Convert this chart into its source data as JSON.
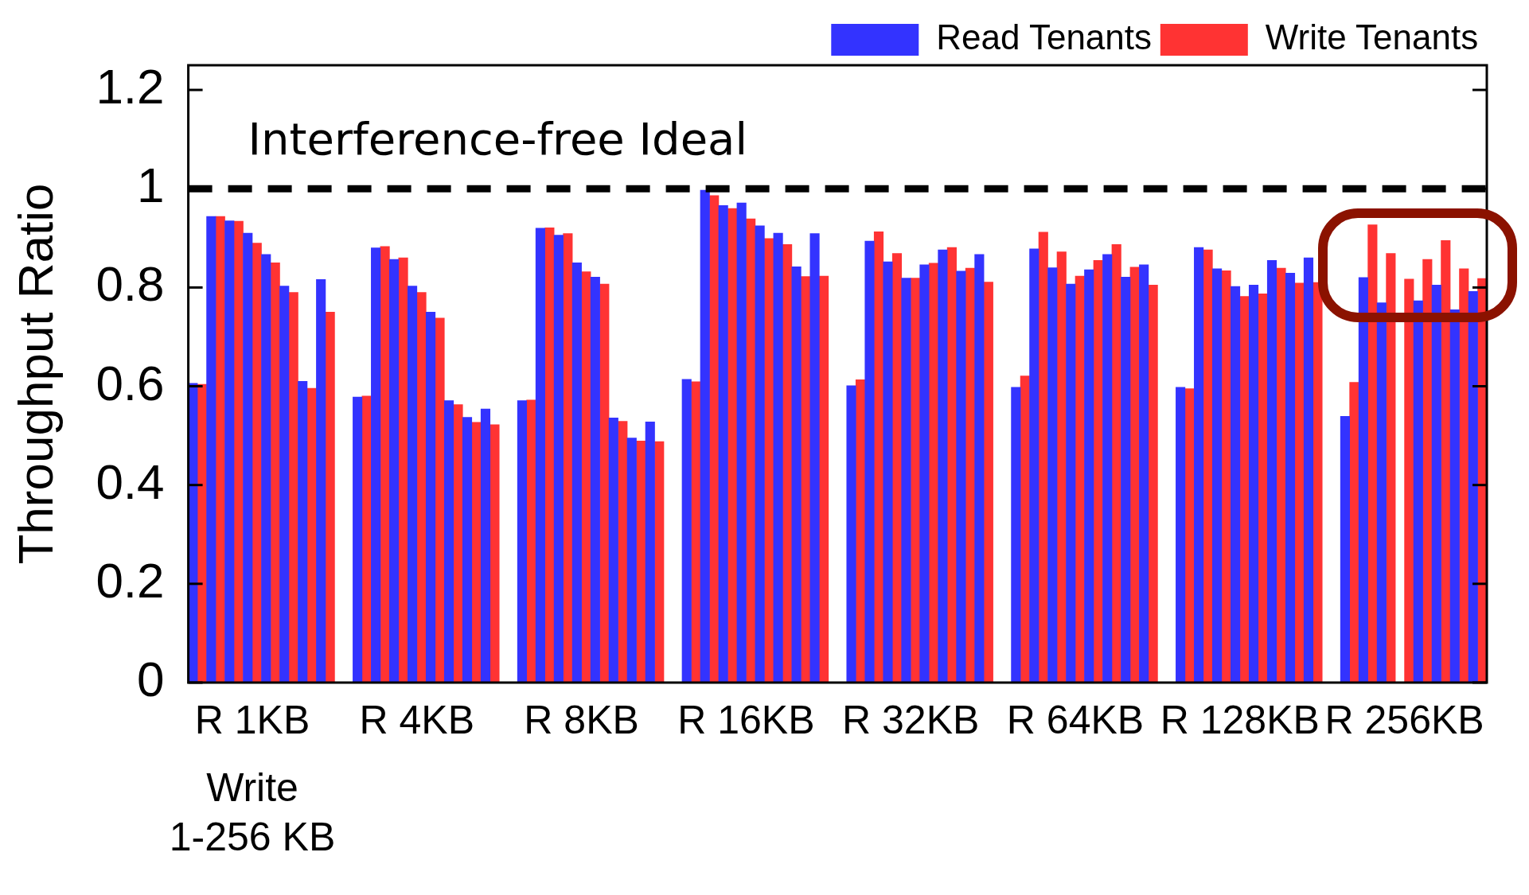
{
  "chart_data": {
    "type": "bar",
    "ylabel": "Throughput Ratio",
    "categories": [
      null,
      null,
      null,
      "R 1KB",
      null,
      null,
      null,
      null,
      null,
      null,
      null,
      null,
      "R 4KB",
      null,
      null,
      null,
      null,
      null,
      null,
      null,
      null,
      "R 8KB",
      null,
      null,
      null,
      null,
      null,
      null,
      null,
      null,
      "R 16KB",
      null,
      null,
      null,
      null,
      null,
      null,
      null,
      null,
      "R 32KB",
      null,
      null,
      null,
      null,
      null,
      null,
      null,
      null,
      "R 64KB",
      null,
      null,
      null,
      null,
      null,
      null,
      null,
      null,
      "R 128KB",
      null,
      null,
      null,
      null,
      null,
      null,
      null,
      null,
      "R 256KB",
      null,
      null,
      null,
      null
    ],
    "series": [
      {
        "name": "Read Tenants",
        "color": "#3333ff",
        "values": [
          0.606,
          0.944,
          0.935,
          0.91,
          0.867,
          0.803,
          0.61,
          0.816,
          null,
          0.578,
          0.88,
          0.857,
          0.803,
          0.75,
          0.571,
          0.537,
          0.554,
          null,
          0.571,
          0.92,
          0.906,
          0.85,
          0.821,
          0.536,
          0.495,
          0.528,
          null,
          0.614,
          0.997,
          0.966,
          0.971,
          0.925,
          0.91,
          0.842,
          0.909,
          null,
          0.601,
          0.894,
          0.852,
          0.819,
          0.846,
          0.876,
          0.833,
          0.867,
          null,
          0.598,
          0.878,
          0.84,
          0.807,
          0.836,
          0.867,
          0.821,
          0.846,
          null,
          0.598,
          0.881,
          0.838,
          0.802,
          0.805,
          0.855,
          0.829,
          0.86,
          null,
          0.539,
          0.82,
          0.769,
          null,
          0.773,
          0.805,
          0.755,
          0.792
        ]
      },
      {
        "name": "Write Tenants",
        "color": "#ff3333",
        "values": [
          0.604,
          0.944,
          0.934,
          0.89,
          0.85,
          0.79,
          0.596,
          0.75,
          null,
          0.58,
          0.883,
          0.86,
          0.79,
          0.738,
          0.563,
          0.527,
          0.522,
          null,
          0.572,
          0.921,
          0.909,
          0.832,
          0.807,
          0.529,
          0.489,
          0.488,
          null,
          0.609,
          0.986,
          0.96,
          0.939,
          0.899,
          0.887,
          0.822,
          0.823,
          null,
          0.613,
          0.913,
          0.869,
          0.819,
          0.849,
          0.881,
          0.839,
          0.811,
          null,
          0.621,
          0.912,
          0.872,
          0.823,
          0.855,
          0.887,
          0.841,
          0.805,
          null,
          0.595,
          0.876,
          0.834,
          0.782,
          0.787,
          0.839,
          0.809,
          0.81,
          null,
          0.608,
          0.927,
          0.869,
          0.817,
          0.857,
          0.895,
          0.838,
          0.818
        ]
      }
    ],
    "ylim": [
      0,
      1.25
    ],
    "yticks": [
      0,
      0.2,
      0.4,
      0.6,
      0.8,
      1,
      1.2
    ],
    "ref_lines": [
      {
        "axis": "y",
        "value": 1,
        "label": "Interference-free Ideal",
        "line_style": "dashed",
        "color": "#000000"
      }
    ],
    "annotations": [
      "Write\n1-256 KB"
    ],
    "legend": "top right",
    "grid": false
  }
}
